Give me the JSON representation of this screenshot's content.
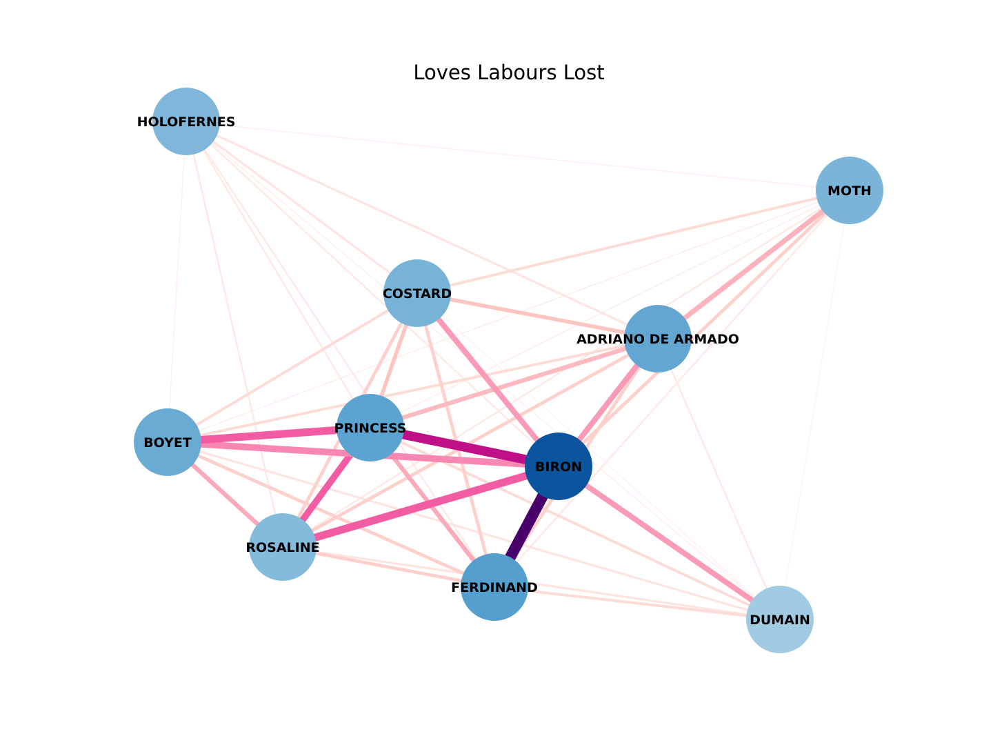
{
  "title": "Loves Labours Lost",
  "nodes": [
    {
      "id": "HOLOFERNES",
      "label": "HOLOFERNES",
      "color": "#7fb6d9"
    },
    {
      "id": "MOTH",
      "label": "MOTH",
      "color": "#7ab4d8"
    },
    {
      "id": "COSTARD",
      "label": "COSTARD",
      "color": "#77b2d7"
    },
    {
      "id": "ADRIANO",
      "label": "ADRIANO DE ARMADO",
      "color": "#63a6d1"
    },
    {
      "id": "BOYET",
      "label": "BOYET",
      "color": "#6aabd4"
    },
    {
      "id": "PRINCESS",
      "label": "PRINCESS",
      "color": "#5ba3d0"
    },
    {
      "id": "BIRON",
      "label": "BIRON",
      "color": "#0b559f"
    },
    {
      "id": "ROSALINE",
      "label": "ROSALINE",
      "color": "#84badb"
    },
    {
      "id": "FERDINAND",
      "label": "FERDINAND",
      "color": "#549fcd"
    },
    {
      "id": "DUMAIN",
      "label": "DUMAIN",
      "color": "#a1cbe2"
    }
  ],
  "edges": [
    {
      "source": "BIRON",
      "target": "FERDINAND",
      "weight": 10,
      "color": "#49006a"
    },
    {
      "source": "PRINCESS",
      "target": "BIRON",
      "weight": 8.5,
      "color": "#bf1087"
    },
    {
      "source": "BOYET",
      "target": "PRINCESS",
      "weight": 7,
      "color": "#f15ca2"
    },
    {
      "source": "ROSALINE",
      "target": "BIRON",
      "weight": 7,
      "color": "#f15ca2"
    },
    {
      "source": "PRINCESS",
      "target": "ROSALINE",
      "weight": 6,
      "color": "#f15ca2"
    },
    {
      "source": "BOYET",
      "target": "BIRON",
      "weight": 6,
      "color": "#f887b1"
    },
    {
      "source": "BIRON",
      "target": "DUMAIN",
      "weight": 5,
      "color": "#f99ab6"
    },
    {
      "source": "COSTARD",
      "target": "BIRON",
      "weight": 5,
      "color": "#f99ab6"
    },
    {
      "source": "ADRIANO",
      "target": "BIRON",
      "weight": 5,
      "color": "#f99ab6"
    },
    {
      "source": "ADRIANO",
      "target": "MOTH",
      "weight": 4.5,
      "color": "#fbb2bc"
    },
    {
      "source": "PRINCESS",
      "target": "FERDINAND",
      "weight": 4,
      "color": "#fbaab9"
    },
    {
      "source": "BOYET",
      "target": "ROSALINE",
      "weight": 4,
      "color": "#fbaab9"
    },
    {
      "source": "PRINCESS",
      "target": "ADRIANO",
      "weight": 4,
      "color": "#fbb9c0"
    },
    {
      "source": "COSTARD",
      "target": "ADRIANO",
      "weight": 3.5,
      "color": "#fcc5c0"
    },
    {
      "source": "COSTARD",
      "target": "PRINCESS",
      "weight": 3.5,
      "color": "#fcc5c0"
    },
    {
      "source": "COSTARD",
      "target": "FERDINAND",
      "weight": 3,
      "color": "#fdd0cb"
    },
    {
      "source": "COSTARD",
      "target": "ROSALINE",
      "weight": 3,
      "color": "#fdd0cb"
    },
    {
      "source": "ROSALINE",
      "target": "ADRIANO",
      "weight": 3,
      "color": "#fdd0cb"
    },
    {
      "source": "ROSALINE",
      "target": "FERDINAND",
      "weight": 3,
      "color": "#fdd0cb"
    },
    {
      "source": "BOYET",
      "target": "FERDINAND",
      "weight": 3,
      "color": "#fdd0cb"
    },
    {
      "source": "FERDINAND",
      "target": "ADRIANO",
      "weight": 3,
      "color": "#fdd0cb"
    },
    {
      "source": "MOTH",
      "target": "BIRON",
      "weight": 3,
      "color": "#fdd0cb"
    },
    {
      "source": "BOYET",
      "target": "COSTARD",
      "weight": 2.5,
      "color": "#fddcd7"
    },
    {
      "source": "BOYET",
      "target": "ADRIANO",
      "weight": 2.5,
      "color": "#fddcd7"
    },
    {
      "source": "PRINCESS",
      "target": "DUMAIN",
      "weight": 2.5,
      "color": "#fddcd7"
    },
    {
      "source": "FERDINAND",
      "target": "DUMAIN",
      "weight": 2.5,
      "color": "#fddcd7"
    },
    {
      "source": "COSTARD",
      "target": "MOTH",
      "weight": 2.5,
      "color": "#fddcd7"
    },
    {
      "source": "ROSALINE",
      "target": "DUMAIN",
      "weight": 2,
      "color": "#fee5e1"
    },
    {
      "source": "BOYET",
      "target": "DUMAIN",
      "weight": 2,
      "color": "#fee5e1"
    },
    {
      "source": "HOLOFERNES",
      "target": "ADRIANO",
      "weight": 2,
      "color": "#fee5e1"
    },
    {
      "source": "HOLOFERNES",
      "target": "COSTARD",
      "weight": 2,
      "color": "#fee5e1"
    },
    {
      "source": "HOLOFERNES",
      "target": "BIRON",
      "weight": 1.5,
      "color": "#fee9e5"
    },
    {
      "source": "HOLOFERNES",
      "target": "PRINCESS",
      "weight": 1.5,
      "color": "#fee9e5"
    },
    {
      "source": "HOLOFERNES",
      "target": "FERDINAND",
      "weight": 1.5,
      "color": "#fee9e5"
    },
    {
      "source": "HOLOFERNES",
      "target": "ROSALINE",
      "weight": 1.5,
      "color": "#fee9e5"
    },
    {
      "source": "ADRIANO",
      "target": "DUMAIN",
      "weight": 1.5,
      "color": "#fee9e5"
    },
    {
      "source": "MOTH",
      "target": "FERDINAND",
      "weight": 1.5,
      "color": "#fee9e5"
    },
    {
      "source": "MOTH",
      "target": "ROSALINE",
      "weight": 1.5,
      "color": "#fee9e5"
    },
    {
      "source": "MOTH",
      "target": "PRINCESS",
      "weight": 1,
      "color": "#feeeec"
    },
    {
      "source": "MOTH",
      "target": "BOYET",
      "weight": 1,
      "color": "#feeeec"
    },
    {
      "source": "HOLOFERNES",
      "target": "MOTH",
      "weight": 1,
      "color": "#fff0ee"
    },
    {
      "source": "HOLOFERNES",
      "target": "BOYET",
      "weight": 1,
      "color": "#fff0ee"
    },
    {
      "source": "HOLOFERNES",
      "target": "DUMAIN",
      "weight": 1,
      "color": "#fff0ee"
    },
    {
      "source": "MOTH",
      "target": "DUMAIN",
      "weight": 1,
      "color": "#fff3f1"
    },
    {
      "source": "COSTARD",
      "target": "DUMAIN",
      "weight": 1,
      "color": "#fff3f1"
    }
  ]
}
